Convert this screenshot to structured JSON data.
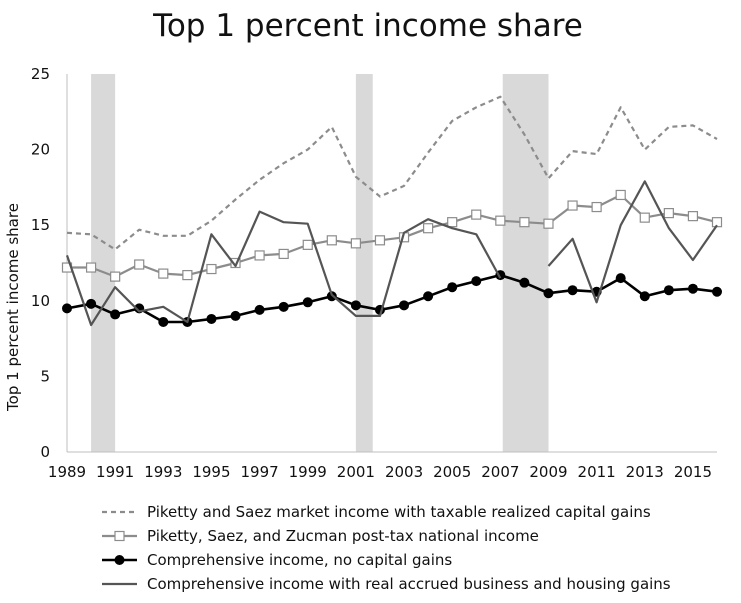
{
  "chart_data": {
    "type": "line",
    "title": "Top 1 percent income share",
    "xlabel": "",
    "ylabel": "Top 1 percent income share",
    "xlim": [
      1989,
      2016
    ],
    "ylim": [
      0,
      25
    ],
    "y_ticks": [
      0,
      5,
      10,
      15,
      20,
      25
    ],
    "x_ticks": [
      1989,
      1991,
      1993,
      1995,
      1997,
      1999,
      2001,
      2003,
      2005,
      2007,
      2009,
      2011,
      2013,
      2015
    ],
    "recession_bands": [
      [
        1990,
        1991
      ],
      [
        2001,
        2001.7
      ],
      [
        2007.1,
        2009
      ]
    ],
    "legend_position": "bottom",
    "grid": false,
    "series": [
      {
        "name": "Piketty and Saez market income with taxable realized capital gains",
        "style": "dashed",
        "color": "#8c8c8c",
        "x": [
          1989,
          1990,
          1991,
          1992,
          1993,
          1994,
          1995,
          1996,
          1997,
          1998,
          1999,
          2000,
          2001,
          2002,
          2003,
          2004,
          2005,
          2006,
          2007,
          2008,
          2009,
          2010,
          2011,
          2012,
          2013,
          2014,
          2015,
          2016
        ],
        "values": [
          14.5,
          14.4,
          13.4,
          14.7,
          14.3,
          14.3,
          15.3,
          16.7,
          18.0,
          19.1,
          20.0,
          21.5,
          18.2,
          16.9,
          17.6,
          19.8,
          21.9,
          22.8,
          23.5,
          21.0,
          18.1,
          19.9,
          19.7,
          22.8,
          20.0,
          21.5,
          21.6,
          20.7
        ]
      },
      {
        "name": "Piketty, Saez, and Zucman post-tax national income",
        "style": "open-square",
        "color": "#8c8c8c",
        "x": [
          1989,
          1990,
          1991,
          1992,
          1993,
          1994,
          1995,
          1996,
          1997,
          1998,
          1999,
          2000,
          2001,
          2002,
          2003,
          2004,
          2005,
          2006,
          2007,
          2008,
          2009,
          2010,
          2011,
          2012,
          2013,
          2014,
          2015,
          2016
        ],
        "values": [
          12.2,
          12.2,
          11.6,
          12.4,
          11.8,
          11.7,
          12.1,
          12.5,
          13.0,
          13.1,
          13.7,
          14.0,
          13.8,
          14.0,
          14.2,
          14.8,
          15.2,
          15.7,
          15.3,
          15.2,
          15.1,
          16.3,
          16.2,
          17.0,
          15.5,
          15.8,
          15.6,
          15.2
        ]
      },
      {
        "name": "Comprehensive income, no capital gains",
        "style": "filled-circle",
        "color": "#000000",
        "x": [
          1989,
          1990,
          1991,
          1992,
          1993,
          1994,
          1995,
          1996,
          1997,
          1998,
          1999,
          2000,
          2001,
          2002,
          2003,
          2004,
          2005,
          2006,
          2007,
          2008,
          2009,
          2010,
          2011,
          2012,
          2013,
          2014,
          2015,
          2016
        ],
        "values": [
          9.5,
          9.8,
          9.1,
          9.5,
          8.6,
          8.6,
          8.8,
          9.0,
          9.4,
          9.6,
          9.9,
          10.3,
          9.7,
          9.4,
          9.7,
          10.3,
          10.9,
          11.3,
          11.7,
          11.2,
          10.5,
          10.7,
          10.6,
          11.5,
          10.3,
          10.7,
          10.8,
          10.6
        ]
      },
      {
        "name": "Comprehensive income with real accrued business and housing gains",
        "style": "solid",
        "color": "#555555",
        "x": [
          1989,
          1990,
          1991,
          1992,
          1993,
          1994,
          1995,
          1996,
          1997,
          1998,
          1999,
          2000,
          2001,
          2002,
          2003,
          2004,
          2005,
          2006,
          2007,
          2008,
          2009,
          2010,
          2011,
          2012,
          2013,
          2014,
          2015,
          2016
        ],
        "values": [
          13.0,
          8.4,
          10.9,
          9.3,
          9.6,
          8.6,
          14.4,
          12.3,
          15.9,
          15.2,
          15.1,
          10.4,
          9.0,
          9.0,
          14.5,
          15.4,
          14.8,
          14.4,
          11.5,
          null,
          12.3,
          14.1,
          9.9,
          15.0,
          17.9,
          14.8,
          12.7,
          15.0
        ]
      }
    ]
  }
}
